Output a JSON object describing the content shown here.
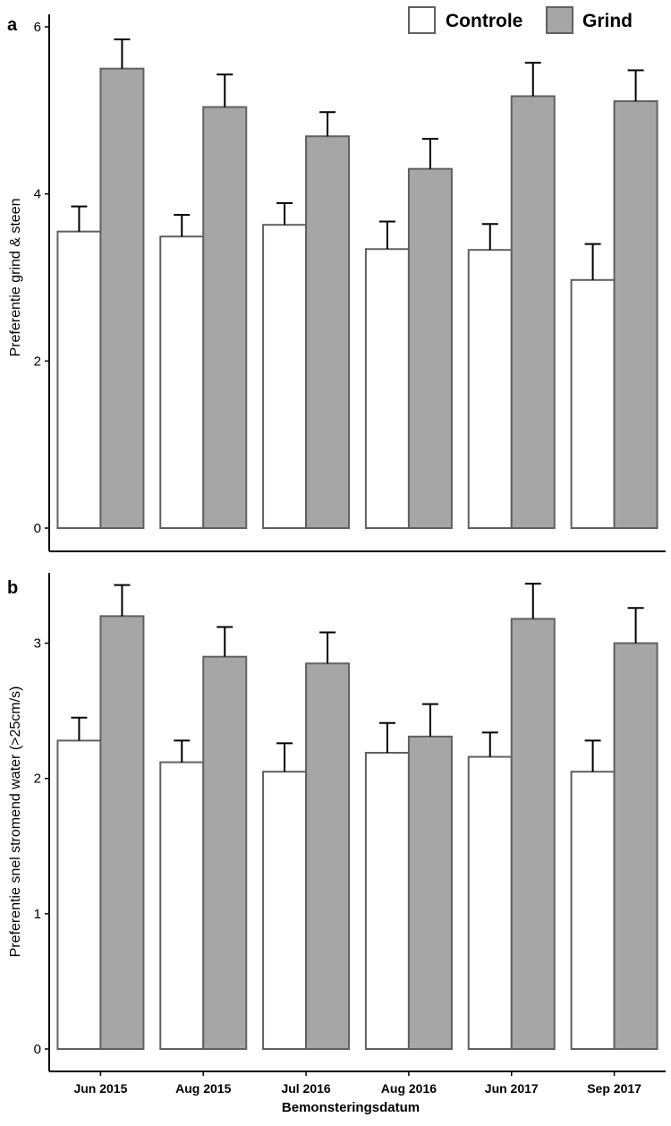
{
  "legend": {
    "placement": "top-right",
    "entries": [
      {
        "name": "Controle",
        "color": "#ffffff"
      },
      {
        "name": "Grind",
        "color": "#a6a6a6"
      }
    ]
  },
  "xlabel": "Bemonsteringsdatum",
  "colors": {
    "controle": "#ffffff",
    "grind": "#a6a6a6",
    "bar_stroke": "#606060",
    "error_bar": "#000000"
  },
  "chart_data": [
    {
      "type": "bar",
      "panel_label": "a",
      "ylabel": "Preferentie grind & steen",
      "ylim": [
        0,
        6.15
      ],
      "yticks": [
        0,
        2,
        4,
        6
      ],
      "grid": false,
      "categories": [
        "Jun 2015",
        "Aug 2015",
        "Jul 2016",
        "Aug 2016",
        "Jun 2017",
        "Sep 2017"
      ],
      "series": [
        {
          "name": "Controle",
          "values": [
            3.55,
            3.49,
            3.63,
            3.34,
            3.33,
            2.97
          ],
          "errors": [
            0.3,
            0.26,
            0.26,
            0.33,
            0.31,
            0.43
          ]
        },
        {
          "name": "Grind",
          "values": [
            5.5,
            5.04,
            4.69,
            4.3,
            5.17,
            5.11
          ],
          "errors": [
            0.35,
            0.39,
            0.29,
            0.36,
            0.4,
            0.37
          ]
        }
      ]
    },
    {
      "type": "bar",
      "panel_label": "b",
      "ylabel": "Preferentie snel stromend water (>25cm/s)",
      "ylim": [
        0,
        3.52
      ],
      "yticks": [
        0,
        1,
        2,
        3
      ],
      "grid": false,
      "categories": [
        "Jun 2015",
        "Aug 2015",
        "Jul 2016",
        "Aug 2016",
        "Jun 2017",
        "Sep 2017"
      ],
      "series": [
        {
          "name": "Controle",
          "values": [
            2.28,
            2.12,
            2.05,
            2.19,
            2.16,
            2.05
          ],
          "errors": [
            0.17,
            0.16,
            0.21,
            0.22,
            0.18,
            0.23
          ]
        },
        {
          "name": "Grind",
          "values": [
            3.2,
            2.9,
            2.85,
            2.31,
            3.18,
            3.0
          ],
          "errors": [
            0.23,
            0.22,
            0.23,
            0.24,
            0.26,
            0.26
          ]
        }
      ]
    }
  ]
}
